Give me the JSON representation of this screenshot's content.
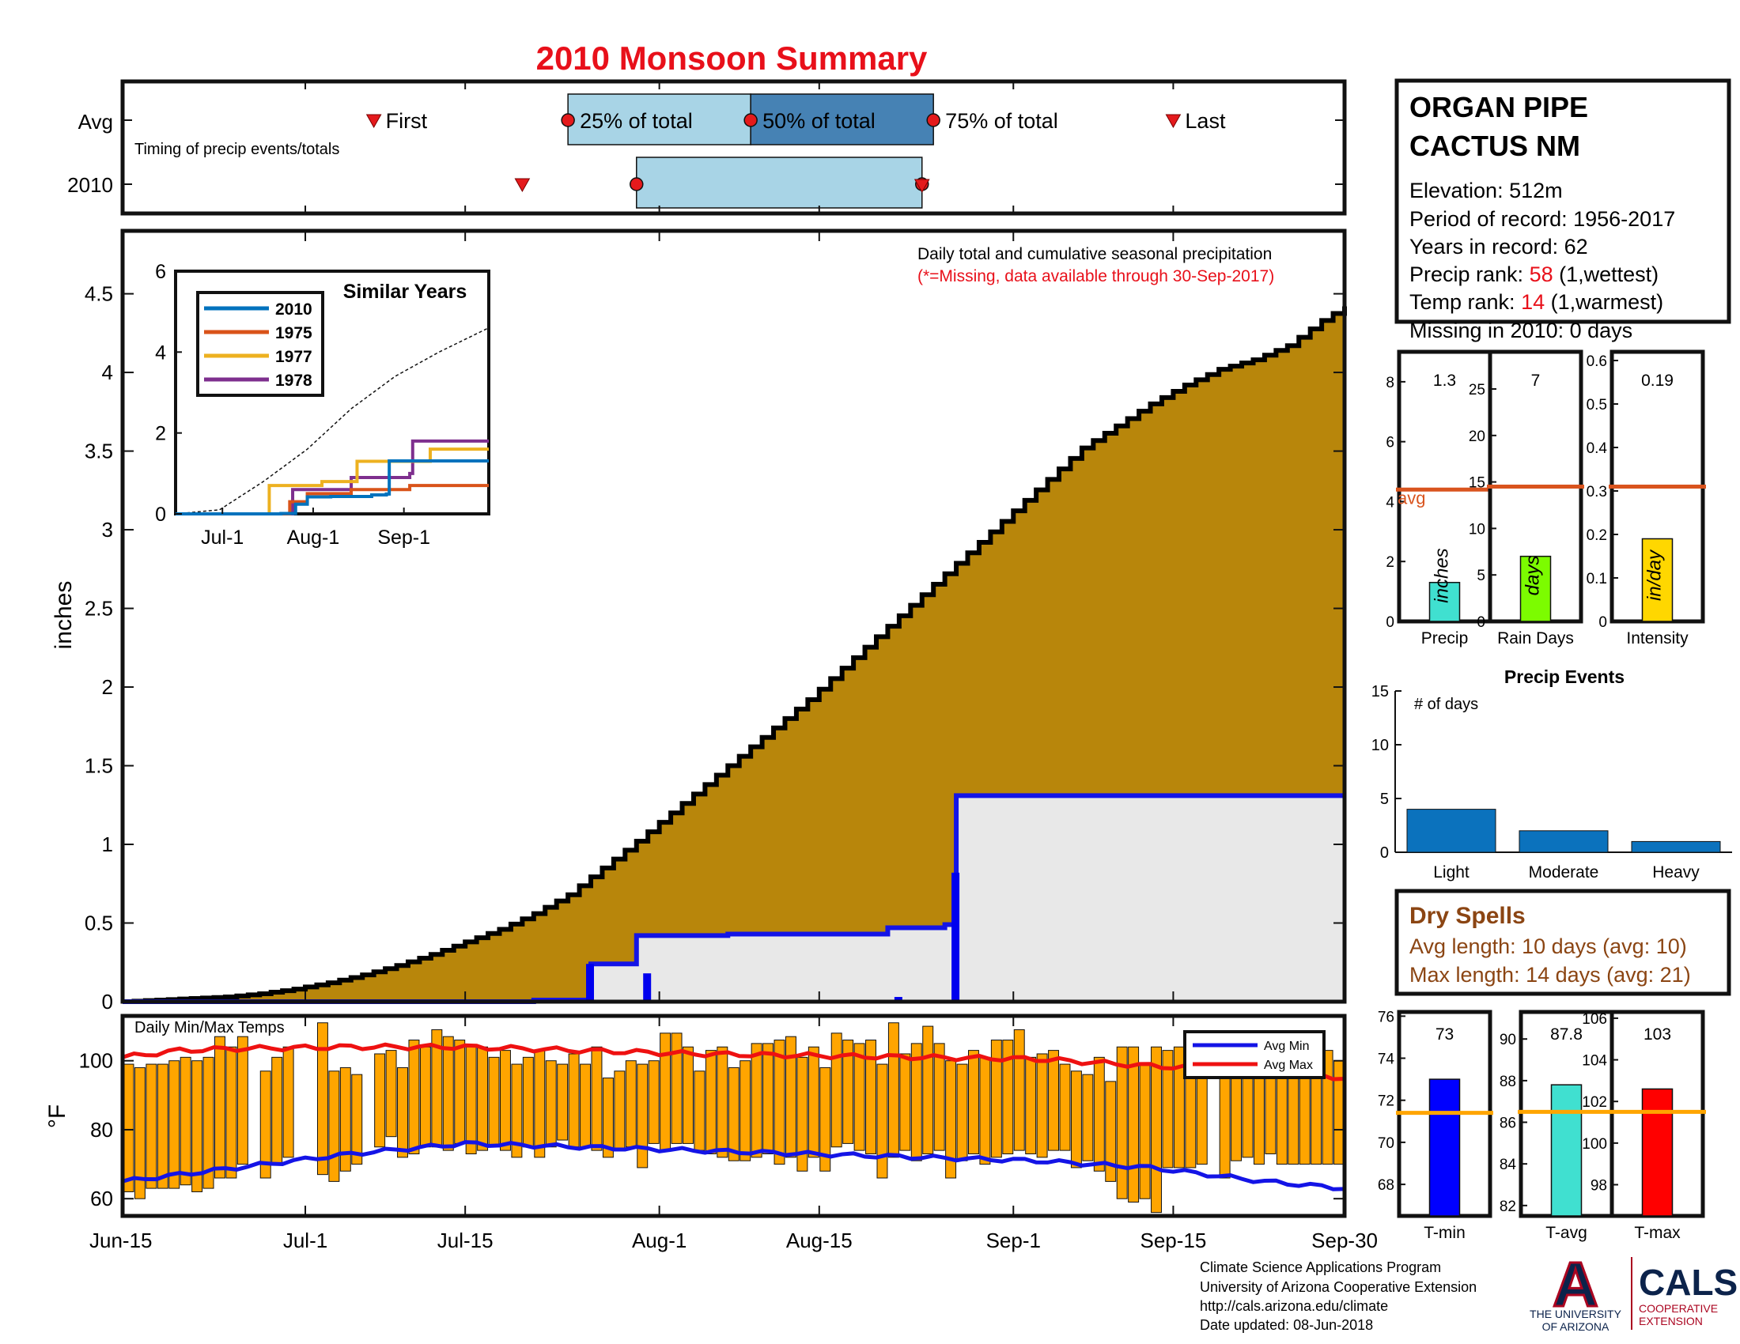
{
  "page_title": "2010 Monsoon Summary",
  "station": {
    "name_line1": "ORGAN PIPE",
    "name_line2": "CACTUS NM",
    "elevation": "Elevation: 512m",
    "period": "Period of record: 1956-2017",
    "years": "Years in record: 62",
    "precip_rank_label": "Precip rank: ",
    "precip_rank_value": "58",
    "precip_rank_note": " (1,wettest)",
    "temp_rank_label": "Temp rank: ",
    "temp_rank_value": "14",
    "temp_rank_note": " (1,warmest)",
    "missing": "Missing in 2010: 0 days"
  },
  "colors": {
    "title_red": "#e8101a",
    "cumulative_fill": "#b8860b",
    "avg_line_blue": "#1414e6",
    "temp_bar": "#ffa500",
    "max_line": "#ee1111",
    "min_line": "#1414e6",
    "box_light": "#a8d4e6",
    "box_dark": "#4682b4",
    "avg_orange": "#d9541e",
    "brown_text": "#8b4513",
    "events_bar": "#0b72bd"
  },
  "chart_data": [
    {
      "id": "timing",
      "type": "timeline",
      "title": "Timing of precip events/totals",
      "rows": [
        "Avg",
        "2010"
      ],
      "avg": {
        "first": "Jul-7",
        "p25": "Jul-24",
        "p50": "Aug-9",
        "p75": "Aug-25",
        "last": "Sep-15"
      },
      "y2010": {
        "first": "Jul-20",
        "p25": "Jul-30",
        "p75": "Aug-24"
      },
      "labels": {
        "first": "First",
        "p25": "25% of total",
        "p50": "50% of total",
        "p75": "75% of total",
        "last": "Last"
      }
    },
    {
      "id": "main_precip",
      "type": "area",
      "title": "Daily total and cumulative seasonal precipitation",
      "subtitle": "(*=Missing, data available through 30-Sep-2017)",
      "ylabel": "inches",
      "ylim": [
        0,
        4.9
      ],
      "yticks": [
        "0",
        "0.5",
        "1",
        "1.5",
        "2",
        "2.5",
        "3",
        "3.5",
        "4",
        "4.5"
      ],
      "x_range_days": [
        0,
        107
      ],
      "xticks": [
        {
          "label": "Jun-15",
          "day": 0
        },
        {
          "label": "Jul-1",
          "day": 16
        },
        {
          "label": "Jul-15",
          "day": 30
        },
        {
          "label": "Aug-1",
          "day": 47
        },
        {
          "label": "Aug-15",
          "day": 61
        },
        {
          "label": "Sep-1",
          "day": 78
        },
        {
          "label": "Sep-15",
          "day": 92
        },
        {
          "label": "Sep-30",
          "day": 107
        }
      ],
      "avg_cumulative": [
        [
          0,
          0
        ],
        [
          3,
          0.01
        ],
        [
          6,
          0.02
        ],
        [
          9,
          0.03
        ],
        [
          12,
          0.05
        ],
        [
          15,
          0.08
        ],
        [
          18,
          0.12
        ],
        [
          21,
          0.17
        ],
        [
          24,
          0.23
        ],
        [
          27,
          0.3
        ],
        [
          30,
          0.38
        ],
        [
          33,
          0.46
        ],
        [
          36,
          0.56
        ],
        [
          39,
          0.68
        ],
        [
          42,
          0.85
        ],
        [
          45,
          1.02
        ],
        [
          48,
          1.2
        ],
        [
          51,
          1.38
        ],
        [
          54,
          1.56
        ],
        [
          57,
          1.74
        ],
        [
          60,
          1.92
        ],
        [
          63,
          2.12
        ],
        [
          66,
          2.32
        ],
        [
          69,
          2.52
        ],
        [
          72,
          2.72
        ],
        [
          75,
          2.92
        ],
        [
          78,
          3.12
        ],
        [
          81,
          3.32
        ],
        [
          84,
          3.52
        ],
        [
          87,
          3.66
        ],
        [
          90,
          3.8
        ],
        [
          93,
          3.92
        ],
        [
          96,
          4.02
        ],
        [
          99,
          4.08
        ],
        [
          102,
          4.17
        ],
        [
          105,
          4.33
        ],
        [
          107,
          4.42
        ]
      ],
      "cumulative_2010": [
        [
          0,
          0
        ],
        [
          36,
          0.01
        ],
        [
          41,
          0.24
        ],
        [
          45,
          0.42
        ],
        [
          53,
          0.43
        ],
        [
          67,
          0.47
        ],
        [
          72,
          0.49
        ],
        [
          73,
          1.31
        ],
        [
          107,
          1.31
        ]
      ],
      "daily_2010": [
        [
          37,
          0.01
        ],
        [
          41,
          0.24
        ],
        [
          46,
          0.18
        ],
        [
          68,
          0.03
        ],
        [
          73,
          0.82
        ]
      ]
    },
    {
      "id": "similar_years",
      "type": "line",
      "title": "Similar Years",
      "ylim": [
        0,
        6
      ],
      "yticks": [
        "0",
        "2",
        "4",
        "6"
      ],
      "xticks": [
        {
          "label": "Jul-1",
          "day": 16
        },
        {
          "label": "Aug-1",
          "day": 47
        },
        {
          "label": "Sep-1",
          "day": 78
        }
      ],
      "x_range_days": [
        0,
        107
      ],
      "series": [
        {
          "name": "2010",
          "color": "#0072bd",
          "points": [
            [
              0,
              0
            ],
            [
              36,
              0.01
            ],
            [
              41,
              0.24
            ],
            [
              45,
              0.42
            ],
            [
              53,
              0.43
            ],
            [
              67,
              0.47
            ],
            [
              72,
              0.49
            ],
            [
              73,
              1.31
            ],
            [
              107,
              1.31
            ]
          ]
        },
        {
          "name": "1975",
          "color": "#d95319",
          "points": [
            [
              0,
              0
            ],
            [
              38,
              0
            ],
            [
              39,
              0.3
            ],
            [
              45,
              0.5
            ],
            [
              60,
              0.6
            ],
            [
              80,
              0.7
            ],
            [
              107,
              0.7
            ]
          ]
        },
        {
          "name": "1977",
          "color": "#edb120",
          "points": [
            [
              0,
              0
            ],
            [
              31,
              0
            ],
            [
              32,
              0.7
            ],
            [
              50,
              0.8
            ],
            [
              62,
              1.3
            ],
            [
              86,
              1.3
            ],
            [
              87,
              1.6
            ],
            [
              107,
              1.6
            ]
          ]
        },
        {
          "name": "1978",
          "color": "#7e2f8e",
          "points": [
            [
              0,
              0
            ],
            [
              39,
              0
            ],
            [
              40,
              0.6
            ],
            [
              60,
              0.9
            ],
            [
              80,
              1.0
            ],
            [
              81,
              1.8
            ],
            [
              107,
              1.8
            ]
          ]
        }
      ],
      "avg_dashed": [
        [
          0,
          0
        ],
        [
          15,
          0.1
        ],
        [
          30,
          0.8
        ],
        [
          45,
          1.6
        ],
        [
          60,
          2.6
        ],
        [
          75,
          3.4
        ],
        [
          90,
          4.0
        ],
        [
          107,
          4.6
        ]
      ]
    },
    {
      "id": "temps",
      "type": "bar",
      "title": "Daily Min/Max Temps",
      "ylabel": "°F",
      "ylim": [
        55,
        113
      ],
      "yticks": [
        "60",
        "80",
        "100"
      ],
      "legend": [
        {
          "name": "Avg Min",
          "color": "#1414e6"
        },
        {
          "name": "Avg Max",
          "color": "#ee1111"
        }
      ],
      "avg_max": [
        [
          0,
          101
        ],
        [
          5,
          103
        ],
        [
          10,
          103.5
        ],
        [
          20,
          104
        ],
        [
          30,
          104
        ],
        [
          40,
          103
        ],
        [
          50,
          102
        ],
        [
          60,
          101.5
        ],
        [
          70,
          101
        ],
        [
          80,
          100.5
        ],
        [
          90,
          98.5
        ],
        [
          100,
          97
        ],
        [
          107,
          95
        ]
      ],
      "avg_min": [
        [
          0,
          65
        ],
        [
          10,
          69
        ],
        [
          20,
          73
        ],
        [
          30,
          76
        ],
        [
          40,
          75
        ],
        [
          50,
          74
        ],
        [
          60,
          73
        ],
        [
          70,
          72
        ],
        [
          80,
          71
        ],
        [
          90,
          69
        ],
        [
          100,
          65
        ],
        [
          107,
          63
        ]
      ],
      "daily_min": [
        62,
        60,
        63,
        63,
        63,
        64,
        62,
        63,
        66,
        66,
        70,
        66,
        66,
        70,
        72,
        72,
        72,
        67,
        65,
        68,
        70,
        75,
        75,
        78,
        72,
        73,
        75,
        75,
        74,
        76,
        73,
        74,
        75,
        74,
        72,
        75,
        72,
        75,
        77,
        75,
        75,
        74,
        72,
        74,
        75,
        69,
        76,
        74,
        76,
        76,
        74,
        73,
        72,
        71,
        71,
        72,
        73,
        70,
        72,
        68,
        72,
        68,
        75,
        76,
        74,
        73,
        66,
        72,
        74,
        71,
        73,
        74,
        66,
        71,
        73,
        70,
        72,
        73,
        74,
        73,
        72,
        74,
        74,
        69,
        71,
        68,
        65,
        60,
        59,
        60,
        56,
        69,
        69,
        69,
        70,
        71,
        66,
        71,
        72,
        70,
        73,
        70,
        70,
        70,
        70,
        70,
        70
      ],
      "daily_max": [
        99,
        98,
        99,
        99,
        100,
        101,
        100,
        101,
        107,
        104,
        107,
        0,
        97,
        101,
        104,
        0,
        0,
        111,
        97,
        98,
        96,
        0,
        102,
        103,
        98,
        106,
        104,
        109,
        107,
        106,
        104,
        104,
        101,
        103,
        99,
        101,
        103,
        100,
        99,
        102,
        99,
        104,
        95,
        97,
        100,
        99,
        100,
        108,
        108,
        104,
        97,
        103,
        104,
        98,
        100,
        105,
        105,
        106,
        107,
        101,
        104,
        98,
        108,
        106,
        105,
        106,
        99,
        111,
        102,
        105,
        110,
        105,
        100,
        99,
        103,
        101,
        106,
        106,
        109,
        101,
        102,
        103,
        99,
        97,
        96,
        101,
        94,
        104,
        104,
        99,
        104,
        103,
        104,
        97,
        104,
        0,
        97,
        101,
        103,
        98,
        100,
        103,
        104,
        100,
        101,
        103,
        100
      ]
    },
    {
      "id": "summary_precip",
      "type": "bar",
      "panels": [
        {
          "label": "Precip",
          "value": 1.3,
          "value_text": "1.3",
          "avg": 4.4,
          "ylim": [
            0,
            9
          ],
          "yticks": [
            0,
            2,
            4,
            6,
            8
          ],
          "color": "#40e0d0",
          "unit": "inches",
          "avg_label": "avg"
        },
        {
          "label": "Rain Days",
          "value": 7,
          "value_text": "7",
          "avg": 14.5,
          "ylim": [
            0,
            29
          ],
          "yticks": [
            0,
            5,
            10,
            15,
            20,
            25
          ],
          "color": "#7cfc00",
          "unit": "days"
        },
        {
          "label": "Intensity",
          "value": 0.19,
          "value_text": "0.19",
          "avg": 0.31,
          "ylim": [
            0,
            0.62
          ],
          "yticks": [
            0,
            0.1,
            0.2,
            0.3,
            0.4,
            0.5,
            0.6
          ],
          "color": "#ffd700",
          "unit": "in/day"
        }
      ]
    },
    {
      "id": "precip_events",
      "type": "bar",
      "title": "Precip Events",
      "ylabel_inside": "# of days",
      "categories": [
        "Light",
        "Moderate",
        "Heavy"
      ],
      "values": [
        4,
        2,
        1
      ],
      "ylim": [
        0,
        15
      ],
      "yticks": [
        "0",
        "5",
        "10",
        "15"
      ]
    },
    {
      "id": "summary_temps",
      "type": "bar",
      "panels": [
        {
          "label": "T-min",
          "value": 73,
          "value_text": "73",
          "avg": 71.4,
          "ylim": [
            66.5,
            76.2
          ],
          "yticks": [
            68,
            70,
            72,
            74,
            76
          ],
          "color": "#0000ff"
        },
        {
          "label": "T-avg",
          "value": 87.8,
          "value_text": "87.8",
          "avg": 86.5,
          "ylim": [
            81.5,
            91.3
          ],
          "yticks": [
            82,
            84,
            86,
            88,
            90
          ],
          "color": "#40e0d0"
        },
        {
          "label": "T-max",
          "value": 102.6,
          "value_text": "103",
          "avg": 101.5,
          "ylim": [
            96.5,
            106.3
          ],
          "yticks": [
            98,
            100,
            102,
            104,
            106
          ],
          "color": "#ff0000"
        }
      ]
    }
  ],
  "dry_spells": {
    "title": "Dry Spells",
    "avg_length": "Avg length: 10 days (avg: 10)",
    "max_length": "Max length: 14 days (avg: 21)"
  },
  "footer": {
    "line1": "Climate Science Applications Program",
    "line2": "University of Arizona Cooperative Extension",
    "line3": "http://cals.arizona.edu/climate",
    "line4": " Date updated: 08-Jun-2018"
  },
  "logos": {
    "ua_letter": "A",
    "ua_line1": "THE UNIVERSITY",
    "ua_line2": "OF ARIZONA",
    "cals": "CALS",
    "cals_line1": "COOPERATIVE",
    "cals_line2": "EXTENSION"
  }
}
